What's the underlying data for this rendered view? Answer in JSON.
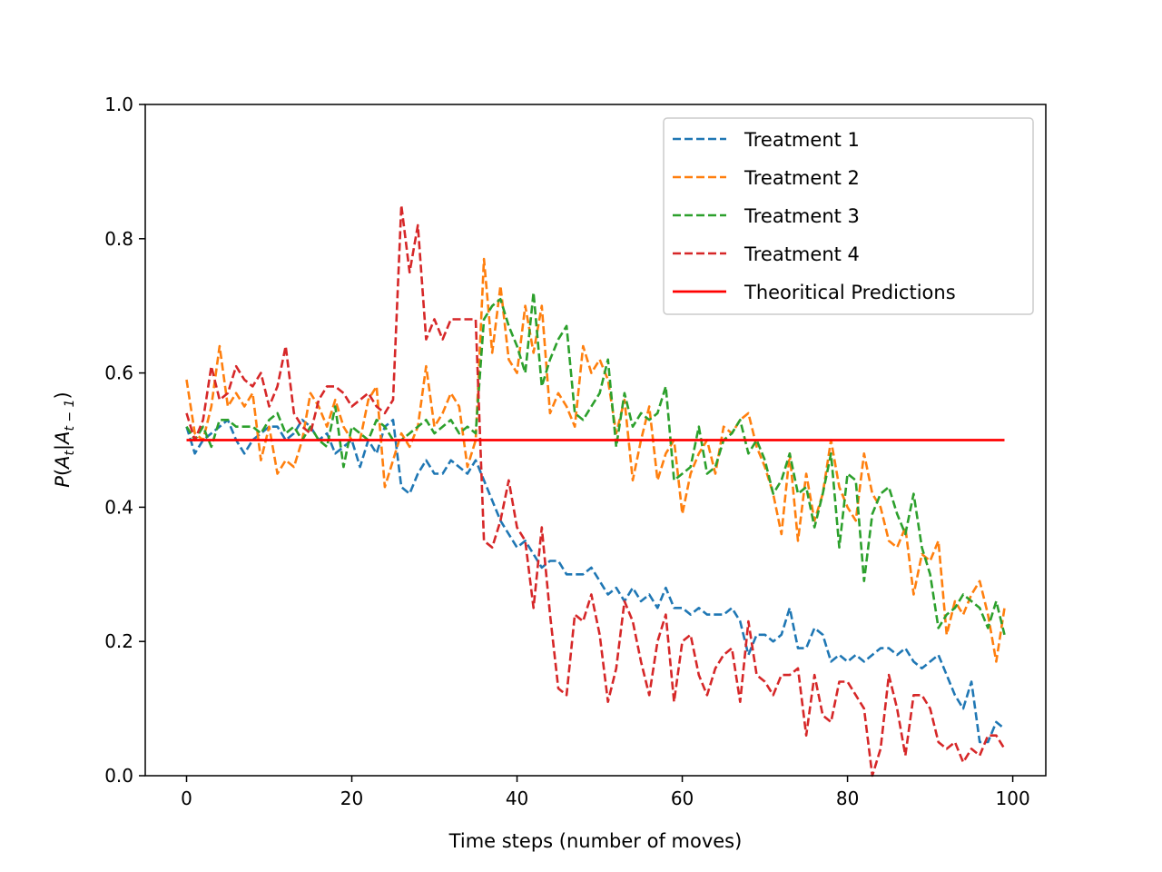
{
  "chart_data": {
    "type": "line",
    "title": "",
    "xlabel": "Time steps (number of moves)",
    "ylabel": "P(At|At−1)",
    "ylabel_parts": {
      "p": "P",
      "open": "(",
      "a1": "A",
      "sub1": "t",
      "bar": "|",
      "a2": "A",
      "sub2": "t − 1",
      "close": ")"
    },
    "xlim": [
      -5,
      104
    ],
    "ylim": [
      0,
      1
    ],
    "xticks": [
      0,
      20,
      40,
      60,
      80,
      100
    ],
    "yticks": [
      0.0,
      0.2,
      0.4,
      0.6,
      0.8,
      1.0
    ],
    "xtick_labels": [
      "0",
      "20",
      "40",
      "60",
      "80",
      "100"
    ],
    "ytick_labels": [
      "0.0",
      "0.2",
      "0.4",
      "0.6",
      "0.8",
      "1.0"
    ],
    "grid": false,
    "legend_position": "top-right",
    "series": [
      {
        "name": "Treatment 1",
        "color": "#1f77b4",
        "style": "dashed",
        "values": [
          0.52,
          0.48,
          0.5,
          0.51,
          0.52,
          0.53,
          0.5,
          0.48,
          0.5,
          0.51,
          0.52,
          0.52,
          0.5,
          0.51,
          0.53,
          0.52,
          0.5,
          0.51,
          0.48,
          0.49,
          0.5,
          0.46,
          0.5,
          0.48,
          0.52,
          0.53,
          0.43,
          0.42,
          0.45,
          0.47,
          0.45,
          0.45,
          0.47,
          0.46,
          0.45,
          0.47,
          0.44,
          0.41,
          0.38,
          0.36,
          0.34,
          0.35,
          0.33,
          0.31,
          0.32,
          0.32,
          0.3,
          0.3,
          0.3,
          0.31,
          0.29,
          0.27,
          0.28,
          0.26,
          0.28,
          0.26,
          0.27,
          0.25,
          0.28,
          0.25,
          0.25,
          0.24,
          0.25,
          0.24,
          0.24,
          0.24,
          0.25,
          0.23,
          0.18,
          0.21,
          0.21,
          0.2,
          0.21,
          0.25,
          0.19,
          0.19,
          0.22,
          0.21,
          0.17,
          0.18,
          0.17,
          0.18,
          0.17,
          0.18,
          0.19,
          0.19,
          0.18,
          0.19,
          0.17,
          0.16,
          0.17,
          0.18,
          0.15,
          0.12,
          0.1,
          0.14,
          0.05,
          0.05,
          0.08,
          0.07
        ]
      },
      {
        "name": "Treatment 2",
        "color": "#ff7f0e",
        "style": "dashed",
        "values": [
          0.59,
          0.51,
          0.5,
          0.55,
          0.64,
          0.55,
          0.57,
          0.55,
          0.57,
          0.47,
          0.52,
          0.45,
          0.47,
          0.46,
          0.5,
          0.57,
          0.55,
          0.52,
          0.56,
          0.52,
          0.5,
          0.5,
          0.56,
          0.58,
          0.43,
          0.47,
          0.51,
          0.49,
          0.52,
          0.61,
          0.52,
          0.54,
          0.57,
          0.55,
          0.46,
          0.5,
          0.77,
          0.63,
          0.73,
          0.62,
          0.6,
          0.7,
          0.63,
          0.7,
          0.54,
          0.57,
          0.55,
          0.52,
          0.64,
          0.6,
          0.62,
          0.59,
          0.51,
          0.56,
          0.44,
          0.5,
          0.55,
          0.44,
          0.48,
          0.5,
          0.39,
          0.45,
          0.48,
          0.5,
          0.45,
          0.52,
          0.51,
          0.53,
          0.54,
          0.49,
          0.46,
          0.42,
          0.36,
          0.48,
          0.35,
          0.45,
          0.38,
          0.42,
          0.5,
          0.43,
          0.4,
          0.38,
          0.48,
          0.42,
          0.4,
          0.35,
          0.34,
          0.37,
          0.27,
          0.33,
          0.32,
          0.35,
          0.21,
          0.26,
          0.24,
          0.27,
          0.29,
          0.24,
          0.17,
          0.25
        ]
      },
      {
        "name": "Treatment 3",
        "color": "#2ca02c",
        "style": "dashed",
        "values": [
          0.52,
          0.5,
          0.52,
          0.49,
          0.53,
          0.53,
          0.52,
          0.52,
          0.52,
          0.51,
          0.53,
          0.54,
          0.51,
          0.52,
          0.5,
          0.52,
          0.5,
          0.49,
          0.55,
          0.46,
          0.52,
          0.51,
          0.5,
          0.53,
          0.52,
          0.5,
          0.5,
          0.51,
          0.52,
          0.53,
          0.51,
          0.52,
          0.53,
          0.51,
          0.52,
          0.51,
          0.68,
          0.7,
          0.71,
          0.67,
          0.64,
          0.6,
          0.72,
          0.58,
          0.62,
          0.65,
          0.67,
          0.54,
          0.53,
          0.55,
          0.57,
          0.62,
          0.49,
          0.57,
          0.52,
          0.54,
          0.53,
          0.54,
          0.58,
          0.44,
          0.45,
          0.46,
          0.52,
          0.45,
          0.46,
          0.5,
          0.51,
          0.53,
          0.48,
          0.5,
          0.47,
          0.42,
          0.44,
          0.48,
          0.42,
          0.43,
          0.37,
          0.42,
          0.48,
          0.34,
          0.45,
          0.44,
          0.29,
          0.39,
          0.42,
          0.43,
          0.39,
          0.36,
          0.42,
          0.34,
          0.3,
          0.22,
          0.24,
          0.25,
          0.27,
          0.26,
          0.25,
          0.22,
          0.26,
          0.21
        ]
      },
      {
        "name": "Treatment 4",
        "color": "#d62728",
        "style": "dashed",
        "values": [
          0.54,
          0.5,
          0.53,
          0.61,
          0.56,
          0.57,
          0.61,
          0.59,
          0.58,
          0.6,
          0.55,
          0.58,
          0.64,
          0.54,
          0.52,
          0.51,
          0.56,
          0.58,
          0.58,
          0.57,
          0.55,
          0.56,
          0.57,
          0.55,
          0.54,
          0.56,
          0.85,
          0.75,
          0.82,
          0.65,
          0.68,
          0.65,
          0.68,
          0.68,
          0.68,
          0.68,
          0.35,
          0.34,
          0.38,
          0.44,
          0.37,
          0.35,
          0.25,
          0.37,
          0.24,
          0.13,
          0.12,
          0.24,
          0.23,
          0.27,
          0.21,
          0.11,
          0.16,
          0.26,
          0.23,
          0.17,
          0.12,
          0.2,
          0.24,
          0.11,
          0.2,
          0.21,
          0.15,
          0.12,
          0.16,
          0.18,
          0.19,
          0.11,
          0.23,
          0.15,
          0.14,
          0.12,
          0.15,
          0.15,
          0.16,
          0.06,
          0.15,
          0.09,
          0.08,
          0.14,
          0.14,
          0.12,
          0.1,
          0.0,
          0.04,
          0.15,
          0.1,
          0.03,
          0.12,
          0.12,
          0.1,
          0.05,
          0.04,
          0.05,
          0.02,
          0.04,
          0.03,
          0.06,
          0.06,
          0.04
        ]
      },
      {
        "name": "Theoritical Predictions",
        "color": "#ff0000",
        "style": "solid",
        "x": [
          0,
          99
        ],
        "values": [
          0.5,
          0.5
        ]
      }
    ]
  }
}
